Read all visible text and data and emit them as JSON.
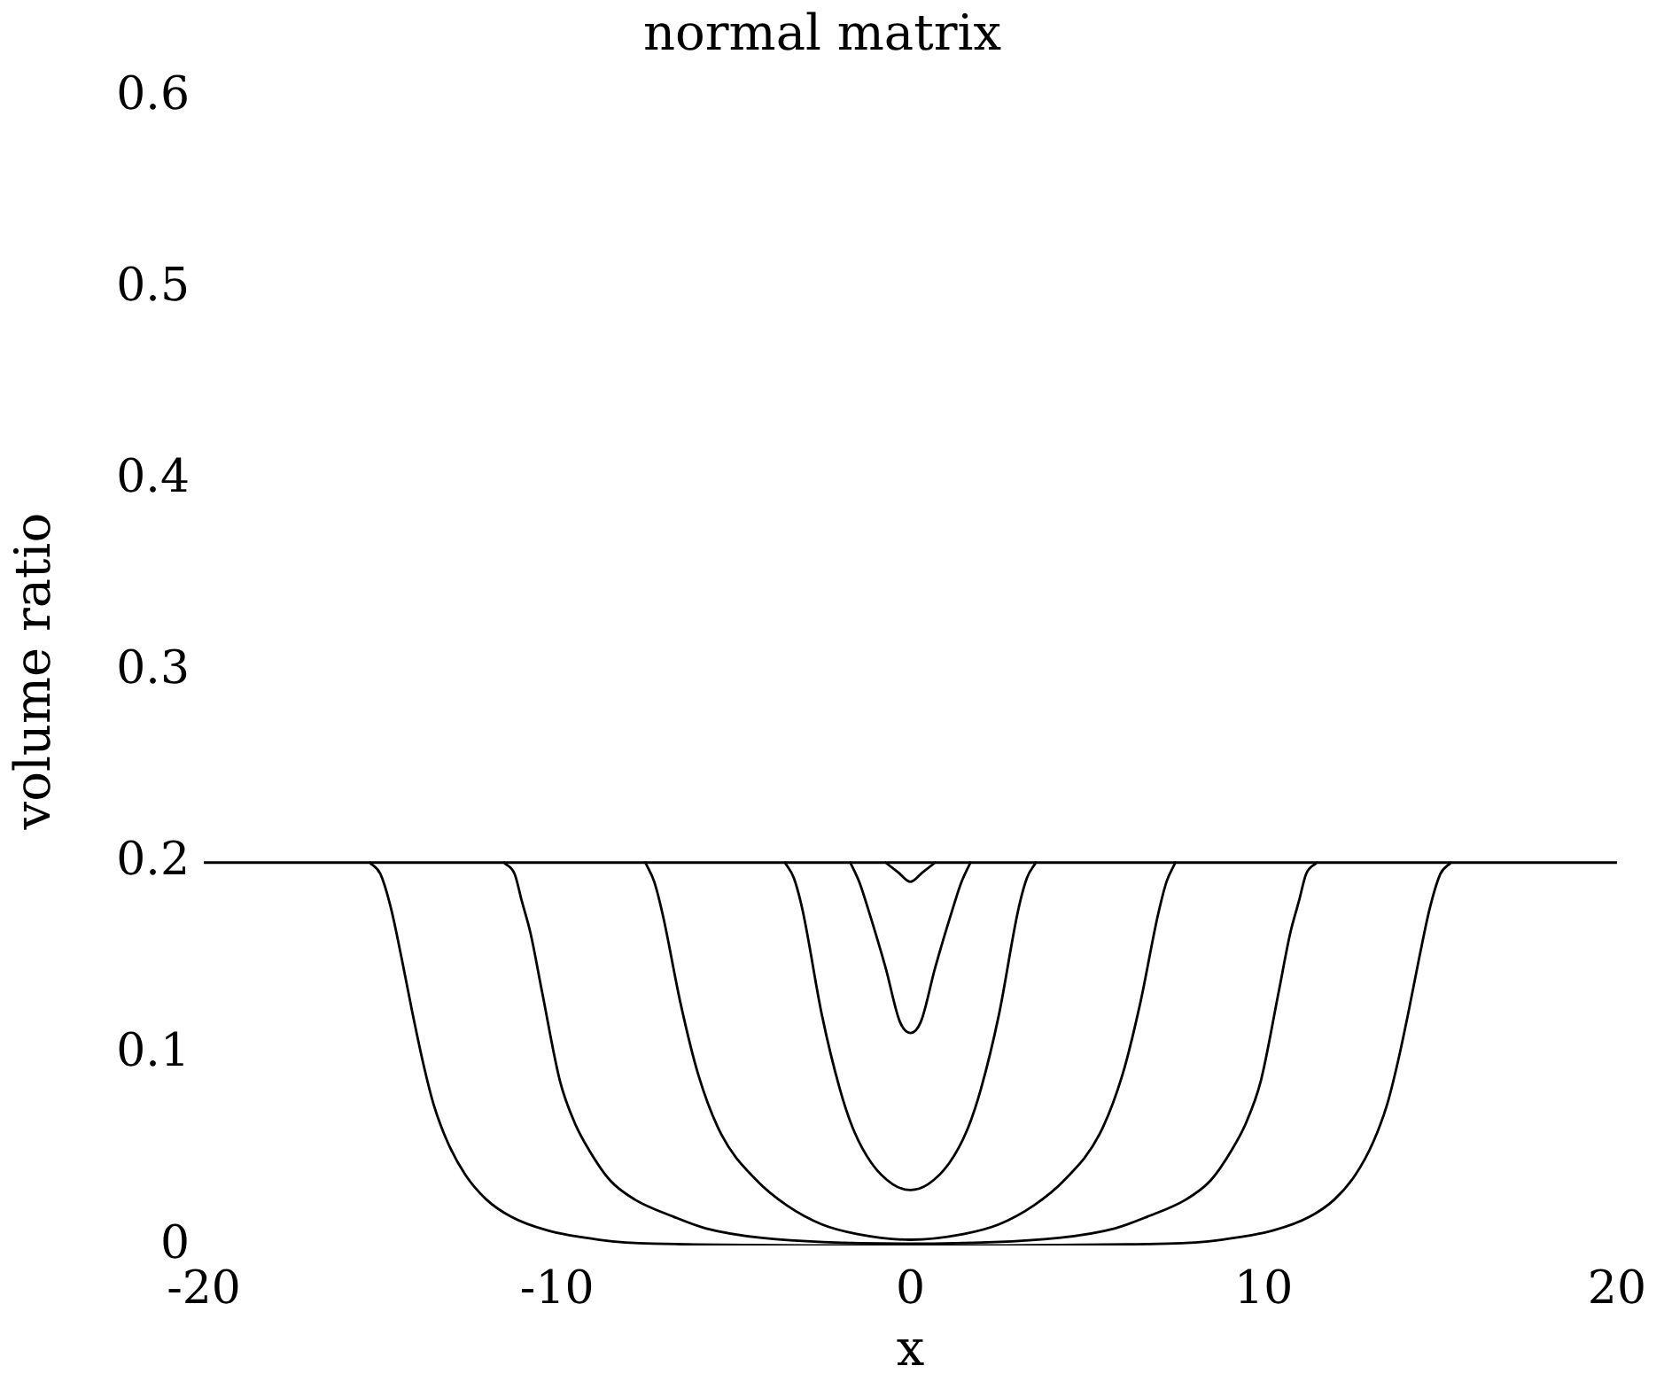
{
  "chart_data": {
    "type": "line",
    "title": "normal matrix",
    "xlabel": "x",
    "ylabel": "volume ratio",
    "xlim": [
      -20,
      20
    ],
    "xticks": [
      -20,
      -10,
      0,
      10,
      20
    ],
    "ylim": [
      0,
      0.6
    ],
    "yticks": [
      0,
      0.1,
      0.2,
      0.3,
      0.4,
      0.5,
      0.6
    ],
    "grid": false,
    "legend": false,
    "marker": "none",
    "line_style": "solid",
    "ref_lines": [
      {
        "axis": "y",
        "value": 0.2,
        "color": "#000000",
        "line_style": "solid"
      }
    ],
    "series": [
      {
        "color": "#000000",
        "x": [
          -0.7,
          -0.35,
          0,
          0.35,
          0.7
        ],
        "values": [
          0.2,
          0.195,
          0.19,
          0.195,
          0.2
        ]
      },
      {
        "color": "#000000",
        "x": [
          -1.7,
          -1.45,
          -1.2,
          -0.7,
          -0.3,
          0,
          0.3,
          0.7,
          1.2,
          1.45,
          1.7
        ],
        "values": [
          0.2,
          0.19,
          0.176,
          0.145,
          0.117,
          0.111,
          0.117,
          0.145,
          0.176,
          0.19,
          0.2
        ]
      },
      {
        "color": "#000000",
        "x": [
          -3.55,
          -3.3,
          -3.05,
          -2.5,
          -2.0,
          -1.6,
          -1.1,
          -0.5,
          0,
          0.5,
          1.1,
          1.6,
          2.0,
          2.5,
          3.05,
          3.3,
          3.55
        ],
        "values": [
          0.2,
          0.192,
          0.175,
          0.12,
          0.082,
          0.06,
          0.043,
          0.032,
          0.029,
          0.032,
          0.043,
          0.06,
          0.082,
          0.12,
          0.175,
          0.192,
          0.2
        ]
      },
      {
        "color": "#000000",
        "x": [
          -7.5,
          -7.25,
          -7.0,
          -6.5,
          -6.0,
          -5.35,
          -4.35,
          -3.5,
          -2.5,
          -1.5,
          0,
          1.5,
          2.5,
          3.5,
          4.35,
          5.35,
          6.0,
          6.5,
          7.0,
          7.25,
          7.5
        ],
        "values": [
          0.2,
          0.19,
          0.172,
          0.126,
          0.089,
          0.058,
          0.034,
          0.021,
          0.011,
          0.006,
          0.003,
          0.006,
          0.011,
          0.021,
          0.034,
          0.058,
          0.089,
          0.126,
          0.172,
          0.19,
          0.2
        ]
      },
      {
        "color": "#000000",
        "x": [
          -11.5,
          -11.2,
          -11.0,
          -10.75,
          -10.42,
          -9.92,
          -9.5,
          -9.1,
          -8.5,
          -7.8,
          -6.7,
          -5.8,
          -4.2,
          0,
          4.2,
          5.8,
          6.7,
          7.8,
          8.5,
          9.1,
          9.5,
          9.92,
          10.42,
          10.75,
          11.0,
          11.2,
          11.5
        ],
        "values": [
          0.2,
          0.194,
          0.18,
          0.163,
          0.132,
          0.086,
          0.064,
          0.05,
          0.034,
          0.024,
          0.015,
          0.009,
          0.004,
          0.001,
          0.004,
          0.009,
          0.015,
          0.024,
          0.034,
          0.05,
          0.064,
          0.086,
          0.132,
          0.163,
          0.18,
          0.194,
          0.2
        ]
      },
      {
        "color": "#000000",
        "x": [
          -15.3,
          -15.0,
          -14.7,
          -14.4,
          -14.1,
          -13.8,
          -13.5,
          -13.1,
          -12.6,
          -12.0,
          -11.3,
          -10.3,
          -8.8,
          -7.3,
          0,
          7.3,
          8.8,
          10.3,
          11.3,
          12.0,
          12.6,
          13.1,
          13.5,
          13.8,
          14.1,
          14.4,
          14.7,
          15.0,
          15.3
        ],
        "values": [
          0.2,
          0.194,
          0.176,
          0.15,
          0.122,
          0.096,
          0.074,
          0.054,
          0.037,
          0.024,
          0.015,
          0.008,
          0.003,
          0.001,
          0,
          0.001,
          0.003,
          0.008,
          0.015,
          0.024,
          0.037,
          0.054,
          0.074,
          0.096,
          0.122,
          0.15,
          0.176,
          0.194,
          0.2
        ]
      }
    ]
  }
}
